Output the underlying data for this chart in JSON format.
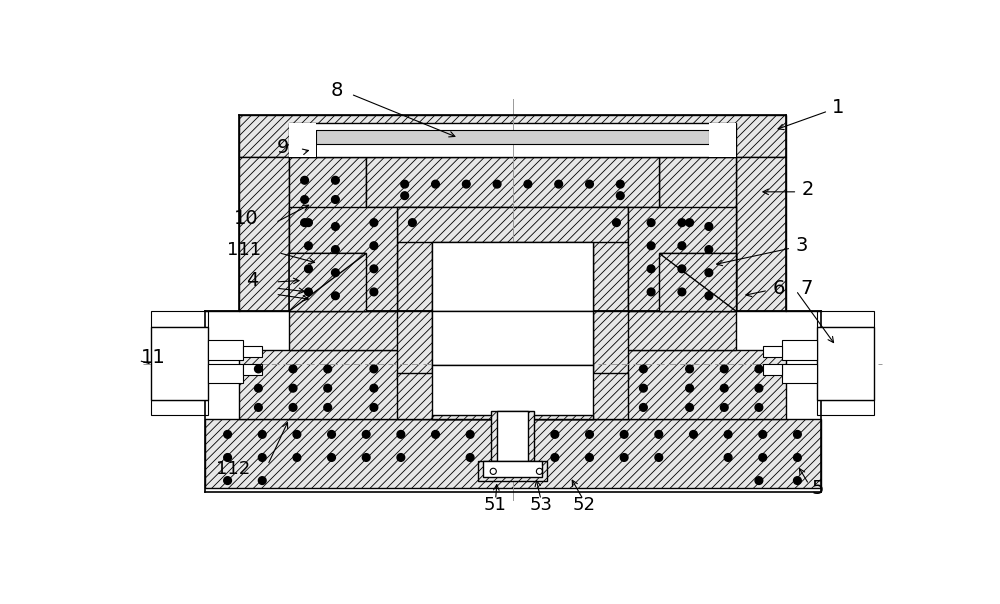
{
  "bg_color": "#ffffff",
  "hatch": "////",
  "fig_width": 10.0,
  "fig_height": 6.04,
  "lc": "#000000"
}
